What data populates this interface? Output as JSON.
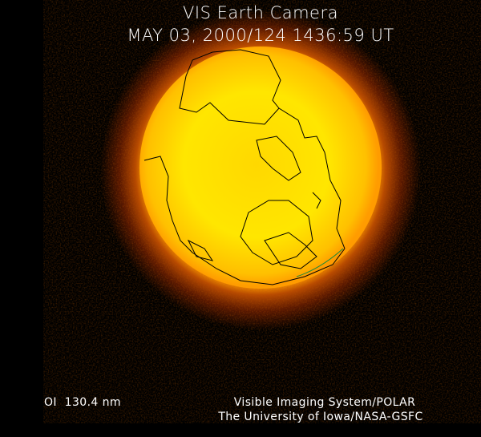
{
  "header": {
    "title": "VIS Earth Camera",
    "timestamp": "MAY 03, 2000/124 1436:59 UT"
  },
  "footer": {
    "band": "OI  130.4 nm",
    "instrument": "Visible Imaging System/POLAR",
    "institution": "The University of Iowa/NASA-GSFC"
  },
  "colors": {
    "background": "#000000",
    "disk_center": "#ffe600",
    "disk_edge": "#ff9c00",
    "halo": "#6a1e00",
    "coastline": "#000000"
  }
}
